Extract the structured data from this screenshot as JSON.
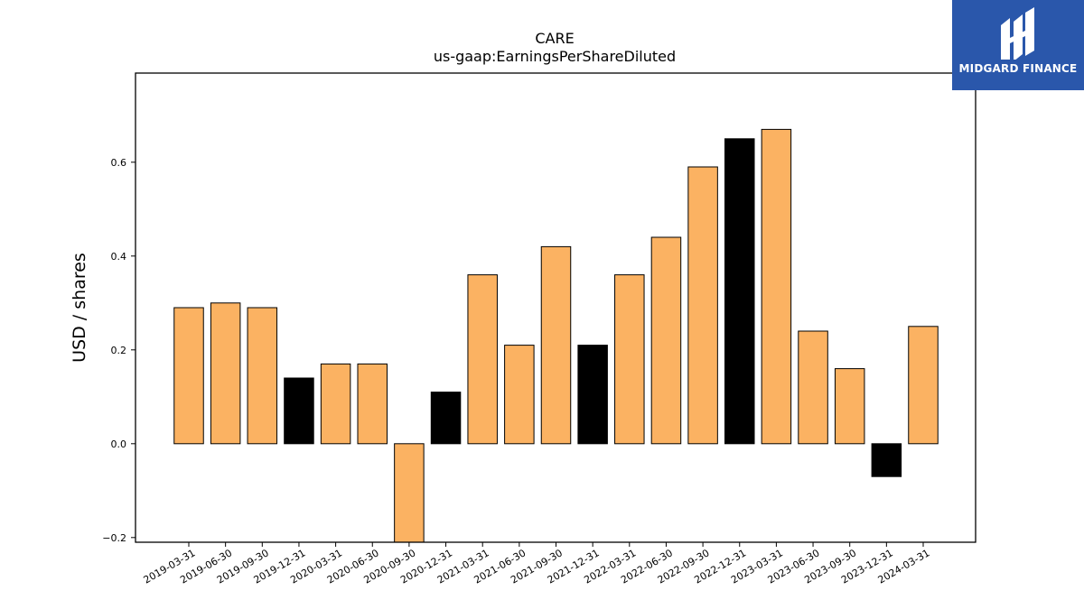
{
  "logo": {
    "text": "MIDGARD FINANCE",
    "color": "#2a57ab"
  },
  "chart_data": {
    "type": "bar",
    "title": "CARE",
    "subtitle": "us-gaap:EarningsPerShareDiluted",
    "xlabel": "",
    "ylabel": "USD / shares",
    "ylim": [
      -0.21,
      0.79
    ],
    "yticks": [
      -0.2,
      0.0,
      0.2,
      0.4,
      0.6
    ],
    "ytick_labels": [
      "−0.2",
      "0.0",
      "0.2",
      "0.4",
      "0.6"
    ],
    "grid": false,
    "categories": [
      "2019-03-31",
      "2019-06-30",
      "2019-09-30",
      "2019-12-31",
      "2020-03-31",
      "2020-06-30",
      "2020-09-30",
      "2020-12-31",
      "2021-03-31",
      "2021-06-30",
      "2021-09-30",
      "2021-12-31",
      "2022-03-31",
      "2022-06-30",
      "2022-09-30",
      "2022-12-31",
      "2023-03-31",
      "2023-06-30",
      "2023-09-30",
      "2023-12-31",
      "2024-03-31"
    ],
    "values": [
      0.29,
      0.3,
      0.29,
      0.14,
      0.17,
      0.17,
      -0.21,
      0.11,
      0.36,
      0.21,
      0.42,
      0.21,
      0.36,
      0.44,
      0.59,
      0.65,
      0.67,
      0.24,
      0.16,
      -0.07,
      0.25
    ],
    "bar_colors": [
      "#fbb262",
      "#fbb262",
      "#fbb262",
      "#000000",
      "#fbb262",
      "#fbb262",
      "#fbb262",
      "#000000",
      "#fbb262",
      "#fbb262",
      "#fbb262",
      "#000000",
      "#fbb262",
      "#fbb262",
      "#fbb262",
      "#000000",
      "#fbb262",
      "#fbb262",
      "#fbb262",
      "#000000",
      "#fbb262"
    ],
    "colors": {
      "quarterly": "#fbb262",
      "year_end": "#000000"
    }
  }
}
